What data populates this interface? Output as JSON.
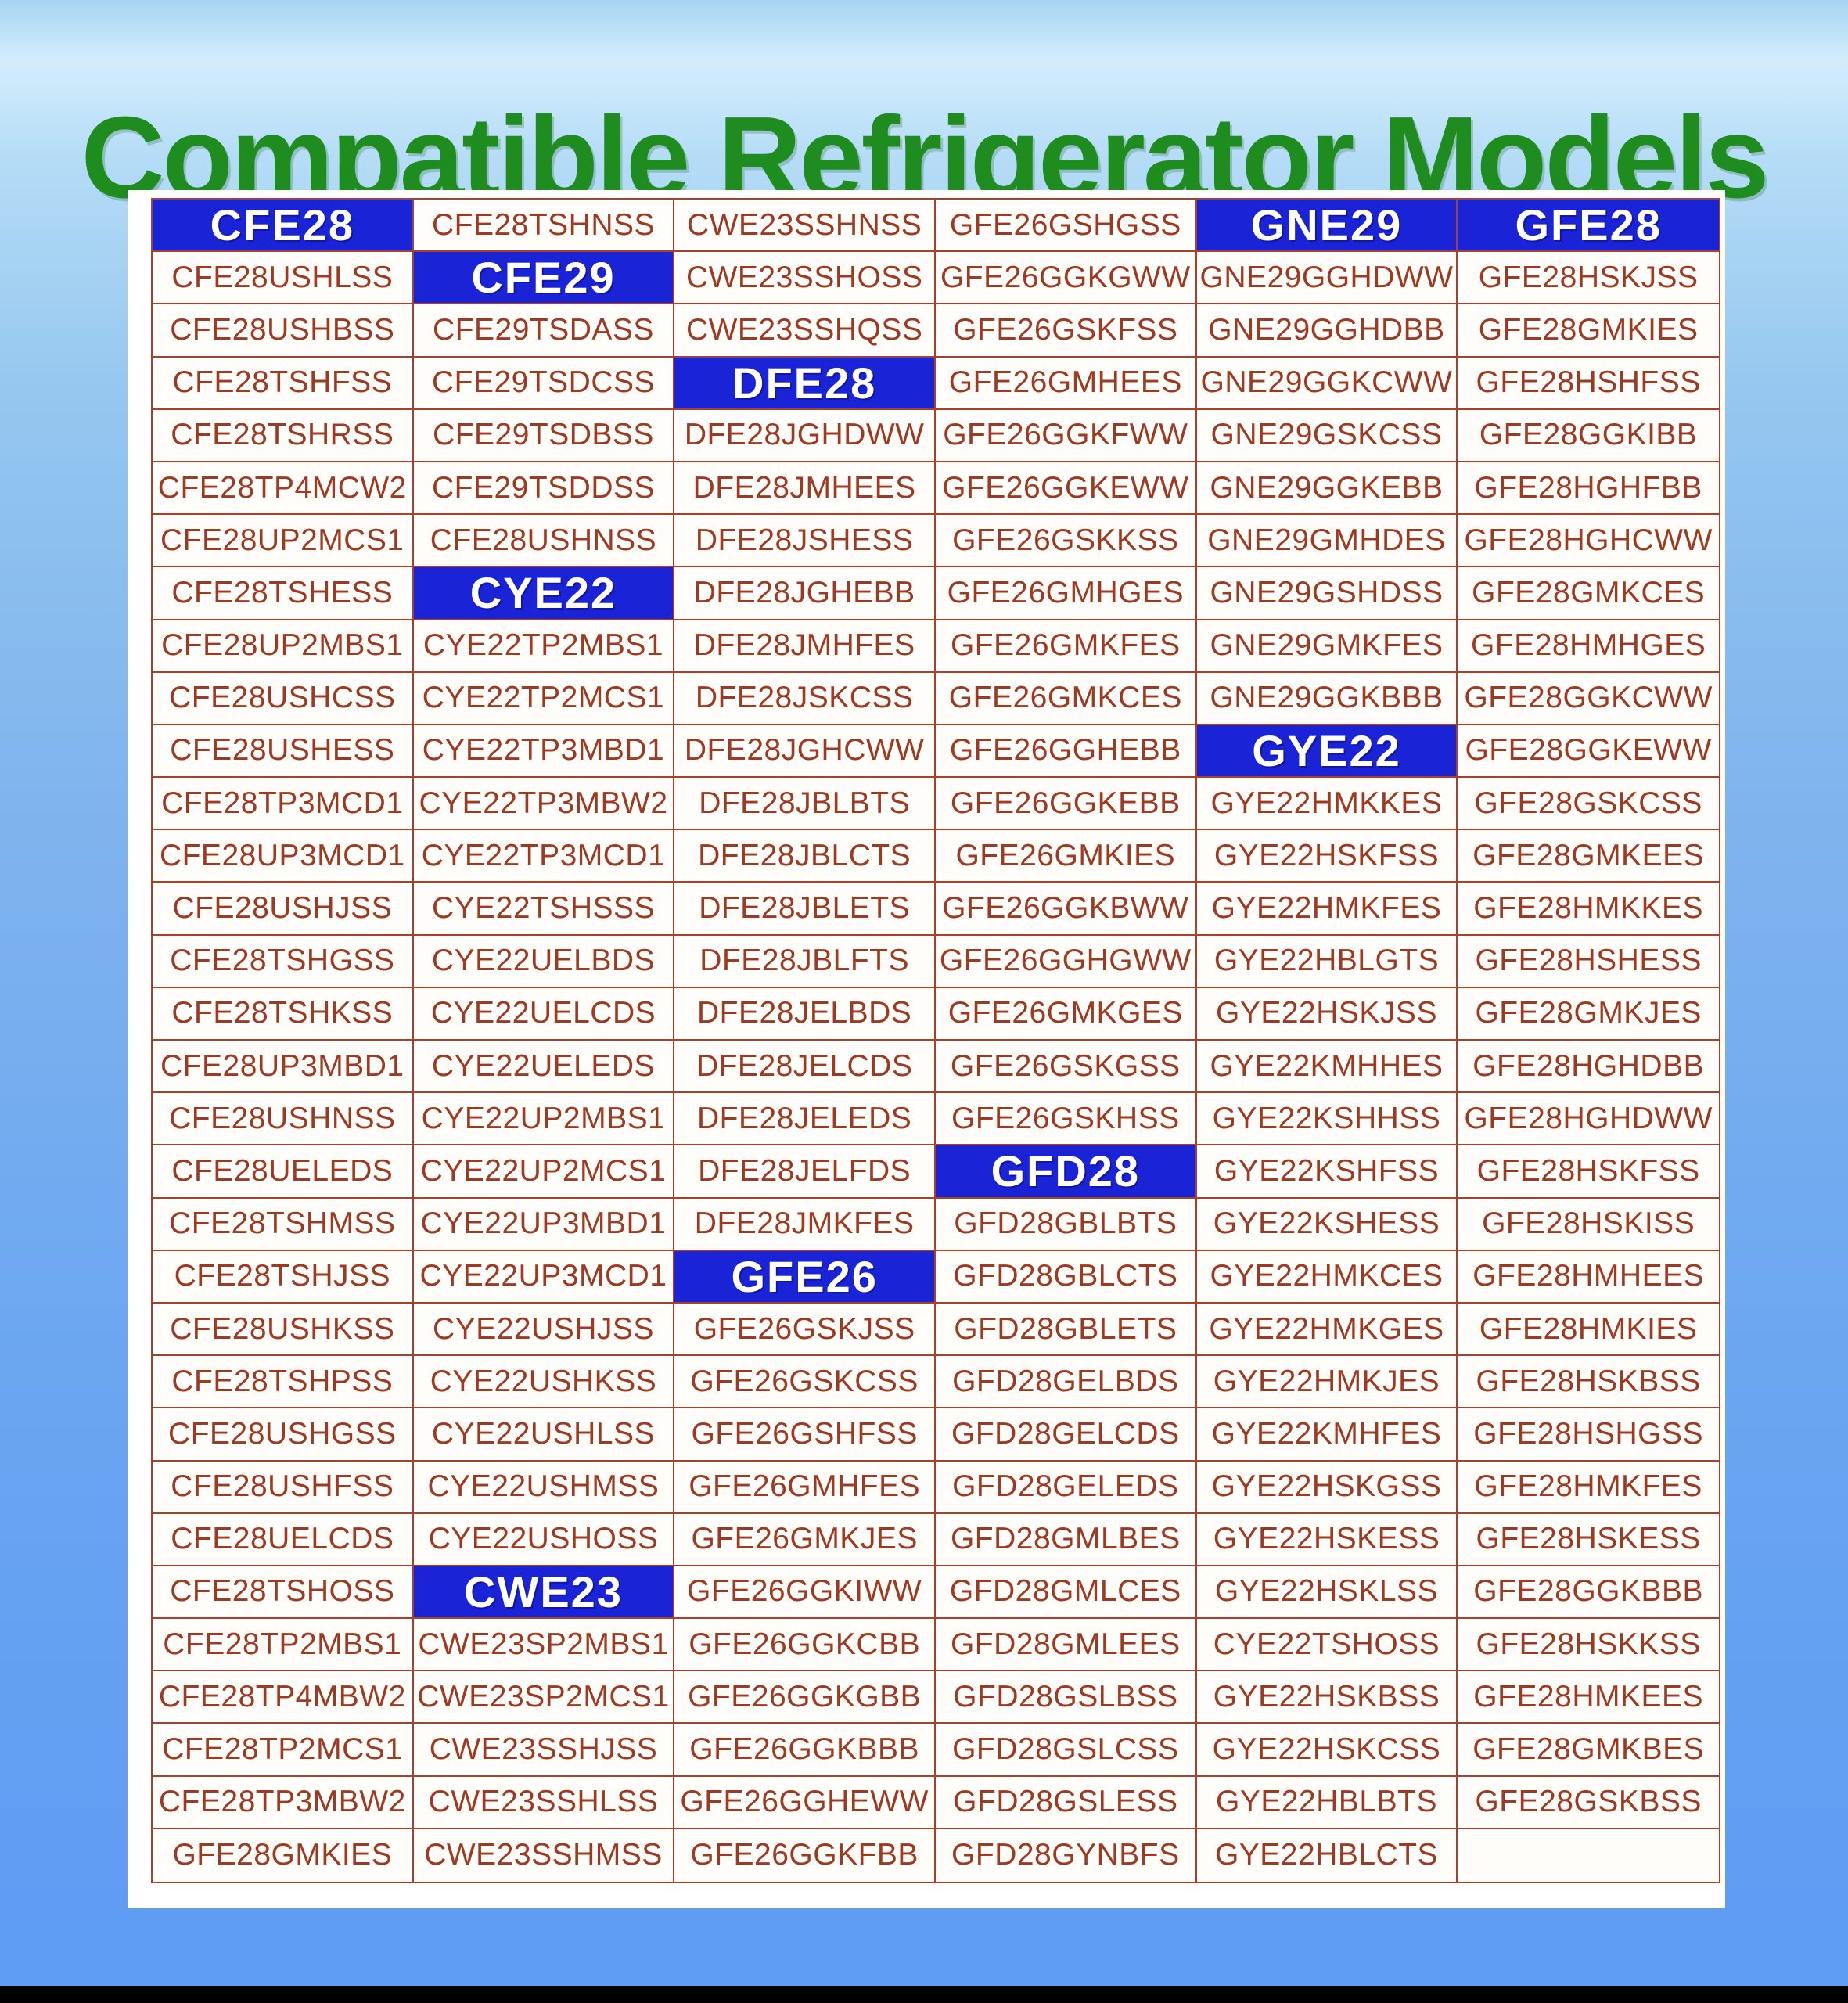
{
  "title": "Compatible Refrigerator Models",
  "colors": {
    "title_green": "#1e8c1f",
    "badge_blue": "#1b23d6",
    "cell_text": "#9e3a22",
    "grid_border": "#a8402a",
    "background_top": "#a6d4f2",
    "background_bottom": "#5f9cf3",
    "panel": "#ffffff",
    "footer_bar": "#000000"
  },
  "table": {
    "columns": [
      {
        "cells": [
          {
            "type": "header",
            "text": "CFE28"
          },
          {
            "type": "model",
            "text": "CFE28USHLSS"
          },
          {
            "type": "model",
            "text": "CFE28USHBSS"
          },
          {
            "type": "model",
            "text": "CFE28TSHFSS"
          },
          {
            "type": "model",
            "text": "CFE28TSHRSS"
          },
          {
            "type": "model",
            "text": "CFE28TP4MCW2"
          },
          {
            "type": "model",
            "text": "CFE28UP2MCS1"
          },
          {
            "type": "model",
            "text": "CFE28TSHESS"
          },
          {
            "type": "model",
            "text": "CFE28UP2MBS1"
          },
          {
            "type": "model",
            "text": "CFE28USHCSS"
          },
          {
            "type": "model",
            "text": "CFE28USHESS"
          },
          {
            "type": "model",
            "text": "CFE28TP3MCD1"
          },
          {
            "type": "model",
            "text": "CFE28UP3MCD1"
          },
          {
            "type": "model",
            "text": "CFE28USHJSS"
          },
          {
            "type": "model",
            "text": "CFE28TSHGSS"
          },
          {
            "type": "model",
            "text": "CFE28TSHKSS"
          },
          {
            "type": "model",
            "text": "CFE28UP3MBD1"
          },
          {
            "type": "model",
            "text": "CFE28USHNSS"
          },
          {
            "type": "model",
            "text": "CFE28UELEDS"
          },
          {
            "type": "model",
            "text": "CFE28TSHMSS"
          },
          {
            "type": "model",
            "text": "CFE28TSHJSS"
          },
          {
            "type": "model",
            "text": "CFE28USHKSS"
          },
          {
            "type": "model",
            "text": "CFE28TSHPSS"
          },
          {
            "type": "model",
            "text": "CFE28USHGSS"
          },
          {
            "type": "model",
            "text": "CFE28USHFSS"
          },
          {
            "type": "model",
            "text": "CFE28UELCDS"
          },
          {
            "type": "model",
            "text": "CFE28TSHOSS"
          },
          {
            "type": "model",
            "text": "CFE28TP2MBS1"
          },
          {
            "type": "model",
            "text": "CFE28TP4MBW2"
          },
          {
            "type": "model",
            "text": "CFE28TP2MCS1"
          },
          {
            "type": "model",
            "text": "CFE28TP3MBW2"
          },
          {
            "type": "model",
            "text": "GFE28GMKIES"
          }
        ]
      },
      {
        "cells": [
          {
            "type": "model",
            "text": "CFE28TSHNSS"
          },
          {
            "type": "header",
            "text": "CFE29"
          },
          {
            "type": "model",
            "text": "CFE29TSDASS"
          },
          {
            "type": "model",
            "text": "CFE29TSDCSS"
          },
          {
            "type": "model",
            "text": "CFE29TSDBSS"
          },
          {
            "type": "model",
            "text": "CFE29TSDDSS"
          },
          {
            "type": "model",
            "text": "CFE28USHNSS"
          },
          {
            "type": "header",
            "text": "CYE22"
          },
          {
            "type": "model",
            "text": "CYE22TP2MBS1"
          },
          {
            "type": "model",
            "text": "CYE22TP2MCS1"
          },
          {
            "type": "model",
            "text": "CYE22TP3MBD1"
          },
          {
            "type": "model",
            "text": "CYE22TP3MBW2"
          },
          {
            "type": "model",
            "text": "CYE22TP3MCD1"
          },
          {
            "type": "model",
            "text": "CYE22TSHSSS"
          },
          {
            "type": "model",
            "text": "CYE22UELBDS"
          },
          {
            "type": "model",
            "text": "CYE22UELCDS"
          },
          {
            "type": "model",
            "text": "CYE22UELEDS"
          },
          {
            "type": "model",
            "text": "CYE22UP2MBS1"
          },
          {
            "type": "model",
            "text": "CYE22UP2MCS1"
          },
          {
            "type": "model",
            "text": "CYE22UP3MBD1"
          },
          {
            "type": "model",
            "text": "CYE22UP3MCD1"
          },
          {
            "type": "model",
            "text": "CYE22USHJSS"
          },
          {
            "type": "model",
            "text": "CYE22USHKSS"
          },
          {
            "type": "model",
            "text": "CYE22USHLSS"
          },
          {
            "type": "model",
            "text": "CYE22USHMSS"
          },
          {
            "type": "model",
            "text": "CYE22USHOSS"
          },
          {
            "type": "header",
            "text": "CWE23"
          },
          {
            "type": "model",
            "text": "CWE23SP2MBS1"
          },
          {
            "type": "model",
            "text": "CWE23SP2MCS1"
          },
          {
            "type": "model",
            "text": "CWE23SSHJSS"
          },
          {
            "type": "model",
            "text": "CWE23SSHLSS"
          },
          {
            "type": "model",
            "text": "CWE23SSHMSS"
          }
        ]
      },
      {
        "cells": [
          {
            "type": "model",
            "text": "CWE23SSHNSS"
          },
          {
            "type": "model",
            "text": "CWE23SSHOSS"
          },
          {
            "type": "model",
            "text": "CWE23SSHQSS"
          },
          {
            "type": "header",
            "text": "DFE28"
          },
          {
            "type": "model",
            "text": "DFE28JGHDWW"
          },
          {
            "type": "model",
            "text": "DFE28JMHEES"
          },
          {
            "type": "model",
            "text": "DFE28JSHESS"
          },
          {
            "type": "model",
            "text": "DFE28JGHEBB"
          },
          {
            "type": "model",
            "text": "DFE28JMHFES"
          },
          {
            "type": "model",
            "text": "DFE28JSKCSS"
          },
          {
            "type": "model",
            "text": "DFE28JGHCWW"
          },
          {
            "type": "model",
            "text": "DFE28JBLBTS"
          },
          {
            "type": "model",
            "text": "DFE28JBLCTS"
          },
          {
            "type": "model",
            "text": "DFE28JBLETS"
          },
          {
            "type": "model",
            "text": "DFE28JBLFTS"
          },
          {
            "type": "model",
            "text": "DFE28JELBDS"
          },
          {
            "type": "model",
            "text": "DFE28JELCDS"
          },
          {
            "type": "model",
            "text": "DFE28JELEDS"
          },
          {
            "type": "model",
            "text": "DFE28JELFDS"
          },
          {
            "type": "model",
            "text": "DFE28JMKFES"
          },
          {
            "type": "header",
            "text": "GFE26"
          },
          {
            "type": "model",
            "text": "GFE26GSKJSS"
          },
          {
            "type": "model",
            "text": "GFE26GSKCSS"
          },
          {
            "type": "model",
            "text": "GFE26GSHFSS"
          },
          {
            "type": "model",
            "text": "GFE26GMHFES"
          },
          {
            "type": "model",
            "text": "GFE26GMKJES"
          },
          {
            "type": "model",
            "text": "GFE26GGKIWW"
          },
          {
            "type": "model",
            "text": "GFE26GGKCBB"
          },
          {
            "type": "model",
            "text": "GFE26GGKGBB"
          },
          {
            "type": "model",
            "text": "GFE26GGKBBB"
          },
          {
            "type": "model",
            "text": "GFE26GGHEWW"
          },
          {
            "type": "model",
            "text": "GFE26GGKFBB"
          }
        ]
      },
      {
        "cells": [
          {
            "type": "model",
            "text": "GFE26GSHGSS"
          },
          {
            "type": "model",
            "text": "GFE26GGKGWW"
          },
          {
            "type": "model",
            "text": "GFE26GSKFSS"
          },
          {
            "type": "model",
            "text": "GFE26GMHEES"
          },
          {
            "type": "model",
            "text": "GFE26GGKFWW"
          },
          {
            "type": "model",
            "text": "GFE26GGKEWW"
          },
          {
            "type": "model",
            "text": "GFE26GSKKSS"
          },
          {
            "type": "model",
            "text": "GFE26GMHGES"
          },
          {
            "type": "model",
            "text": "GFE26GMKFES"
          },
          {
            "type": "model",
            "text": "GFE26GMKCES"
          },
          {
            "type": "model",
            "text": "GFE26GGHEBB"
          },
          {
            "type": "model",
            "text": "GFE26GGKEBB"
          },
          {
            "type": "model",
            "text": "GFE26GMKIES"
          },
          {
            "type": "model",
            "text": "GFE26GGKBWW"
          },
          {
            "type": "model",
            "text": "GFE26GGHGWW"
          },
          {
            "type": "model",
            "text": "GFE26GMKGES"
          },
          {
            "type": "model",
            "text": "GFE26GSKGSS"
          },
          {
            "type": "model",
            "text": "GFE26GSKHSS"
          },
          {
            "type": "header",
            "text": "GFD28"
          },
          {
            "type": "model",
            "text": "GFD28GBLBTS"
          },
          {
            "type": "model",
            "text": "GFD28GBLCTS"
          },
          {
            "type": "model",
            "text": "GFD28GBLETS"
          },
          {
            "type": "model",
            "text": "GFD28GELBDS"
          },
          {
            "type": "model",
            "text": "GFD28GELCDS"
          },
          {
            "type": "model",
            "text": "GFD28GELEDS"
          },
          {
            "type": "model",
            "text": "GFD28GMLBES"
          },
          {
            "type": "model",
            "text": "GFD28GMLCES"
          },
          {
            "type": "model",
            "text": "GFD28GMLEES"
          },
          {
            "type": "model",
            "text": "GFD28GSLBSS"
          },
          {
            "type": "model",
            "text": "GFD28GSLCSS"
          },
          {
            "type": "model",
            "text": "GFD28GSLESS"
          },
          {
            "type": "model",
            "text": "GFD28GYNBFS"
          }
        ]
      },
      {
        "cells": [
          {
            "type": "header",
            "text": "GNE29"
          },
          {
            "type": "model",
            "text": "GNE29GGHDWW"
          },
          {
            "type": "model",
            "text": "GNE29GGHDBB"
          },
          {
            "type": "model",
            "text": "GNE29GGKCWW"
          },
          {
            "type": "model",
            "text": "GNE29GSKCSS"
          },
          {
            "type": "model",
            "text": "GNE29GGKEBB"
          },
          {
            "type": "model",
            "text": "GNE29GMHDES"
          },
          {
            "type": "model",
            "text": "GNE29GSHDSS"
          },
          {
            "type": "model",
            "text": "GNE29GMKFES"
          },
          {
            "type": "model",
            "text": "GNE29GGKBBB"
          },
          {
            "type": "header",
            "text": "GYE22"
          },
          {
            "type": "model",
            "text": "GYE22HMKKES"
          },
          {
            "type": "model",
            "text": "GYE22HSKFSS"
          },
          {
            "type": "model",
            "text": "GYE22HMKFES"
          },
          {
            "type": "model",
            "text": "GYE22HBLGTS"
          },
          {
            "type": "model",
            "text": "GYE22HSKJSS"
          },
          {
            "type": "model",
            "text": "GYE22KMHHES"
          },
          {
            "type": "model",
            "text": "GYE22KSHHSS"
          },
          {
            "type": "model",
            "text": "GYE22KSHFSS"
          },
          {
            "type": "model",
            "text": "GYE22KSHESS"
          },
          {
            "type": "model",
            "text": "GYE22HMKCES"
          },
          {
            "type": "model",
            "text": "GYE22HMKGES"
          },
          {
            "type": "model",
            "text": "GYE22HMKJES"
          },
          {
            "type": "model",
            "text": "GYE22KMHFES"
          },
          {
            "type": "model",
            "text": "GYE22HSKGSS"
          },
          {
            "type": "model",
            "text": "GYE22HSKESS"
          },
          {
            "type": "model",
            "text": "GYE22HSKLSS"
          },
          {
            "type": "model",
            "text": "CYE22TSHOSS"
          },
          {
            "type": "model",
            "text": "GYE22HSKBSS"
          },
          {
            "type": "model",
            "text": "GYE22HSKCSS"
          },
          {
            "type": "model",
            "text": "GYE22HBLBTS"
          },
          {
            "type": "model",
            "text": "GYE22HBLCTS"
          }
        ]
      },
      {
        "cells": [
          {
            "type": "header",
            "text": "GFE28"
          },
          {
            "type": "model",
            "text": "GFE28HSKJSS"
          },
          {
            "type": "model",
            "text": "GFE28GMKIES"
          },
          {
            "type": "model",
            "text": "GFE28HSHFSS"
          },
          {
            "type": "model",
            "text": "GFE28GGKIBB"
          },
          {
            "type": "model",
            "text": "GFE28HGHFBB"
          },
          {
            "type": "model",
            "text": "GFE28HGHCWW"
          },
          {
            "type": "model",
            "text": "GFE28GMKCES"
          },
          {
            "type": "model",
            "text": "GFE28HMHGES"
          },
          {
            "type": "model",
            "text": "GFE28GGKCWW"
          },
          {
            "type": "model",
            "text": "GFE28GGKEWW"
          },
          {
            "type": "model",
            "text": "GFE28GSKCSS"
          },
          {
            "type": "model",
            "text": "GFE28GMKEES"
          },
          {
            "type": "model",
            "text": "GFE28HMKKES"
          },
          {
            "type": "model",
            "text": "GFE28HSHESS"
          },
          {
            "type": "model",
            "text": "GFE28GMKJES"
          },
          {
            "type": "model",
            "text": "GFE28HGHDBB"
          },
          {
            "type": "model",
            "text": "GFE28HGHDWW"
          },
          {
            "type": "model",
            "text": "GFE28HSKFSS"
          },
          {
            "type": "model",
            "text": "GFE28HSKISS"
          },
          {
            "type": "model",
            "text": "GFE28HMHEES"
          },
          {
            "type": "model",
            "text": "GFE28HMKIES"
          },
          {
            "type": "model",
            "text": "GFE28HSKBSS"
          },
          {
            "type": "model",
            "text": "GFE28HSHGSS"
          },
          {
            "type": "model",
            "text": "GFE28HMKFES"
          },
          {
            "type": "model",
            "text": "GFE28HSKESS"
          },
          {
            "type": "model",
            "text": "GFE28GGKBBB"
          },
          {
            "type": "model",
            "text": "GFE28HSKKSS"
          },
          {
            "type": "model",
            "text": "GFE28HMKEES"
          },
          {
            "type": "model",
            "text": "GFE28GMKBES"
          },
          {
            "type": "model",
            "text": "GFE28GSKBSS"
          },
          {
            "type": "model",
            "text": ""
          }
        ]
      }
    ]
  }
}
